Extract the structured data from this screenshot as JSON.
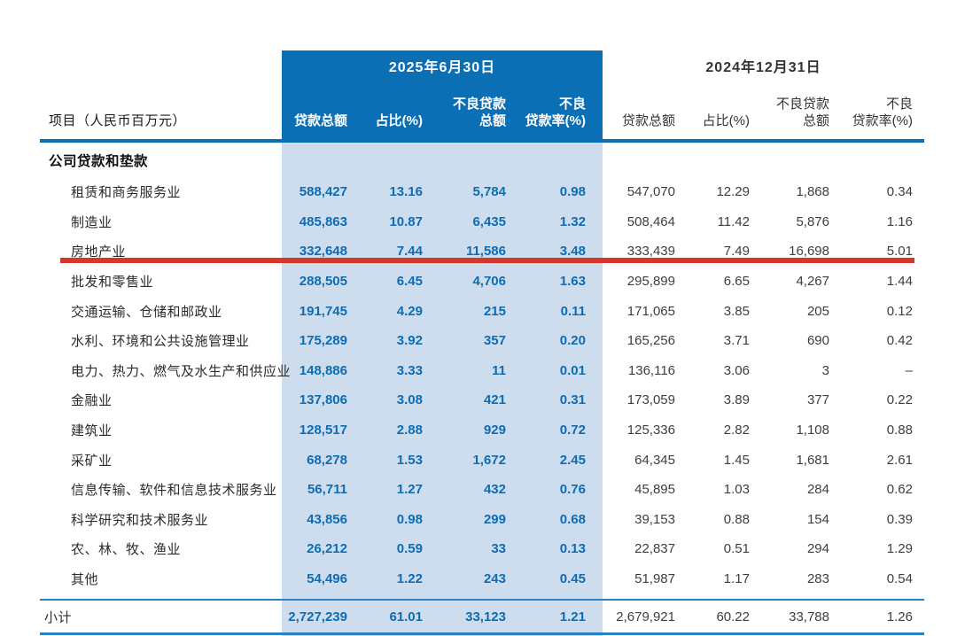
{
  "colors": {
    "header_blue": "#0b6fb6",
    "band_blue": "#cedded",
    "number_blue": "#0e6cb5",
    "secondary_text": "#3e3e3e",
    "highlight_red": "#d6372b",
    "divider_blue": "#2b80c2"
  },
  "table": {
    "item_column_header": "项目（人民币百万元）",
    "periods": [
      {
        "title": "2025年6月30日",
        "columns": [
          [
            "",
            "贷款总额"
          ],
          [
            "",
            "占比(%)"
          ],
          [
            "不良贷款",
            "总额"
          ],
          [
            "不良",
            "贷款率(%)"
          ]
        ]
      },
      {
        "title": "2024年12月31日",
        "columns": [
          [
            "",
            "贷款总额"
          ],
          [
            "",
            "占比(%)"
          ],
          [
            "不良贷款",
            "总额"
          ],
          [
            "不良",
            "贷款率(%)"
          ]
        ]
      }
    ],
    "section_header": "公司贷款和垫款",
    "rows": [
      {
        "label": "租赁和商务服务业",
        "highlighted": false,
        "values_2025": [
          "588,427",
          "13.16",
          "5,784",
          "0.98"
        ],
        "values_2024": [
          "547,070",
          "12.29",
          "1,868",
          "0.34"
        ]
      },
      {
        "label": "制造业",
        "highlighted": false,
        "values_2025": [
          "485,863",
          "10.87",
          "6,435",
          "1.32"
        ],
        "values_2024": [
          "508,464",
          "11.42",
          "5,876",
          "1.16"
        ]
      },
      {
        "label": "房地产业",
        "highlighted": true,
        "values_2025": [
          "332,648",
          "7.44",
          "11,586",
          "3.48"
        ],
        "values_2024": [
          "333,439",
          "7.49",
          "16,698",
          "5.01"
        ]
      },
      {
        "label": "批发和零售业",
        "highlighted": false,
        "values_2025": [
          "288,505",
          "6.45",
          "4,706",
          "1.63"
        ],
        "values_2024": [
          "295,899",
          "6.65",
          "4,267",
          "1.44"
        ]
      },
      {
        "label": "交通运输、仓储和邮政业",
        "highlighted": false,
        "values_2025": [
          "191,745",
          "4.29",
          "215",
          "0.11"
        ],
        "values_2024": [
          "171,065",
          "3.85",
          "205",
          "0.12"
        ]
      },
      {
        "label": "水利、环境和公共设施管理业",
        "highlighted": false,
        "values_2025": [
          "175,289",
          "3.92",
          "357",
          "0.20"
        ],
        "values_2024": [
          "165,256",
          "3.71",
          "690",
          "0.42"
        ]
      },
      {
        "label": "电力、热力、燃气及水生产和供应业",
        "highlighted": false,
        "values_2025": [
          "148,886",
          "3.33",
          "11",
          "0.01"
        ],
        "values_2024": [
          "136,116",
          "3.06",
          "3",
          "–"
        ]
      },
      {
        "label": "金融业",
        "highlighted": false,
        "values_2025": [
          "137,806",
          "3.08",
          "421",
          "0.31"
        ],
        "values_2024": [
          "173,059",
          "3.89",
          "377",
          "0.22"
        ]
      },
      {
        "label": "建筑业",
        "highlighted": false,
        "values_2025": [
          "128,517",
          "2.88",
          "929",
          "0.72"
        ],
        "values_2024": [
          "125,336",
          "2.82",
          "1,108",
          "0.88"
        ]
      },
      {
        "label": "采矿业",
        "highlighted": false,
        "values_2025": [
          "68,278",
          "1.53",
          "1,672",
          "2.45"
        ],
        "values_2024": [
          "64,345",
          "1.45",
          "1,681",
          "2.61"
        ]
      },
      {
        "label": "信息传输、软件和信息技术服务业",
        "highlighted": false,
        "values_2025": [
          "56,711",
          "1.27",
          "432",
          "0.76"
        ],
        "values_2024": [
          "45,895",
          "1.03",
          "284",
          "0.62"
        ]
      },
      {
        "label": "科学研究和技术服务业",
        "highlighted": false,
        "values_2025": [
          "43,856",
          "0.98",
          "299",
          "0.68"
        ],
        "values_2024": [
          "39,153",
          "0.88",
          "154",
          "0.39"
        ]
      },
      {
        "label": "农、林、牧、渔业",
        "highlighted": false,
        "values_2025": [
          "26,212",
          "0.59",
          "33",
          "0.13"
        ],
        "values_2024": [
          "22,837",
          "0.51",
          "294",
          "1.29"
        ]
      },
      {
        "label": "其他",
        "highlighted": false,
        "values_2025": [
          "54,496",
          "1.22",
          "243",
          "0.45"
        ],
        "values_2024": [
          "51,987",
          "1.17",
          "283",
          "0.54"
        ]
      }
    ],
    "subtotal": {
      "label": "小计",
      "values_2025": [
        "2,727,239",
        "61.01",
        "33,123",
        "1.21"
      ],
      "values_2024": [
        "2,679,921",
        "60.22",
        "33,788",
        "1.26"
      ]
    }
  }
}
